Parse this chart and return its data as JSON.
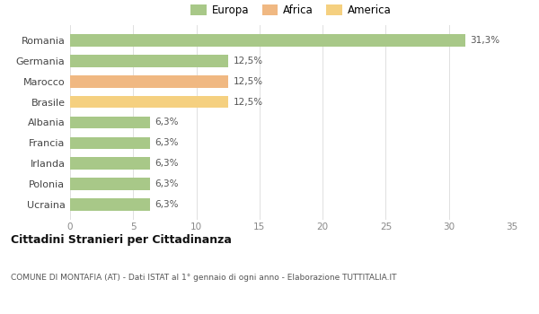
{
  "categories": [
    "Ucraina",
    "Polonia",
    "Irlanda",
    "Francia",
    "Albania",
    "Brasile",
    "Marocco",
    "Germania",
    "Romania"
  ],
  "values": [
    6.3,
    6.3,
    6.3,
    6.3,
    6.3,
    12.5,
    12.5,
    12.5,
    31.3
  ],
  "colors": [
    "#a8c888",
    "#a8c888",
    "#a8c888",
    "#a8c888",
    "#a8c888",
    "#f5d080",
    "#f0b882",
    "#a8c888",
    "#a8c888"
  ],
  "labels": [
    "6,3%",
    "6,3%",
    "6,3%",
    "6,3%",
    "6,3%",
    "12,5%",
    "12,5%",
    "12,5%",
    "31,3%"
  ],
  "legend": [
    {
      "label": "Europa",
      "color": "#a8c888"
    },
    {
      "label": "Africa",
      "color": "#f0b882"
    },
    {
      "label": "America",
      "color": "#f5d080"
    }
  ],
  "xlim": [
    0,
    35
  ],
  "xticks": [
    0,
    5,
    10,
    15,
    20,
    25,
    30,
    35
  ],
  "title": "Cittadini Stranieri per Cittadinanza",
  "subtitle": "COMUNE DI MONTAFIA (AT) - Dati ISTAT al 1° gennaio di ogni anno - Elaborazione TUTTITALIA.IT",
  "background_color": "#ffffff",
  "grid_color": "#e0e0e0",
  "bar_height": 0.6
}
